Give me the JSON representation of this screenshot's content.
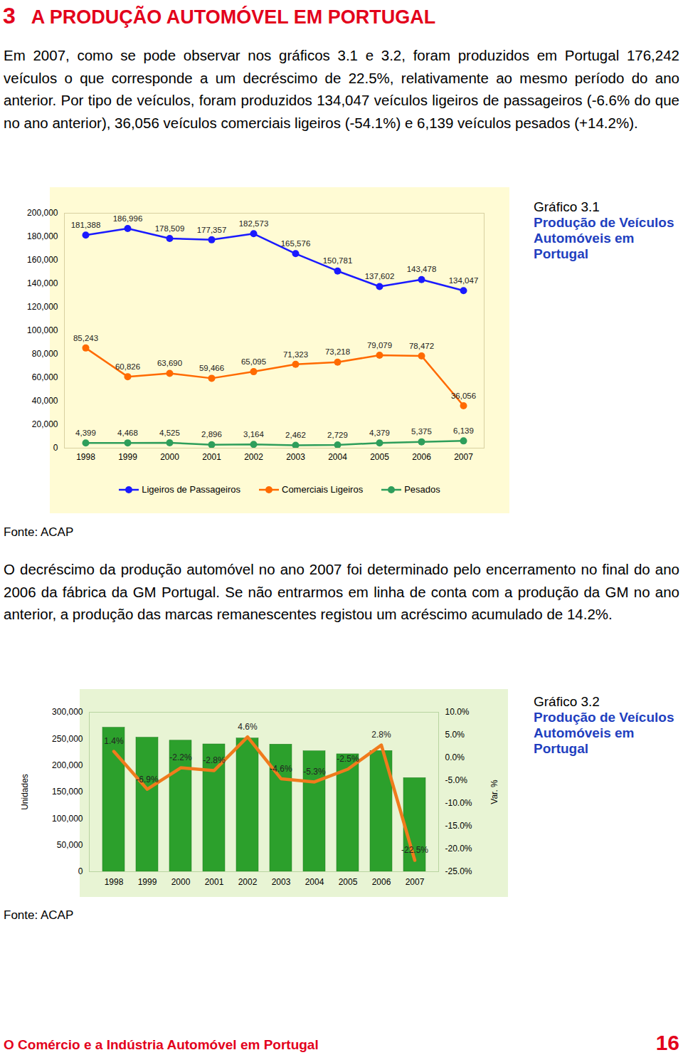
{
  "section_number": "3",
  "section_title": "A PRODUÇÃO AUTOMÓVEL EM PORTUGAL",
  "paragraphs": [
    "Em 2007, como se pode observar nos gráficos 3.1 e 3.2, foram produzidos em Portugal 176,242 veículos o que corresponde a um decréscimo de 22.5%, relativamente ao mesmo período do ano anterior. Por tipo de veículos, foram produzidos 134,047 veículos ligeiros de passageiros (-6.6% do que no ano anterior), 36,056 veículos comerciais ligeiros (-54.1%) e 6,139 veículos pesados (+14.2%).",
    "O decréscimo da produção automóvel no ano 2007 foi determinado pelo encerramento no final do ano 2006 da fábrica da GM Portugal. Se não entrarmos em linha de conta com a produção da GM no ano anterior, a produção das marcas remanescentes registou um acréscimo acumulado de 14.2%."
  ],
  "chart_data": [
    {
      "type": "line",
      "figure": "Gráfico 3.1",
      "title": "Produção de Veículos Automóveis em Portugal",
      "source": "Fonte: ACAP",
      "categories": [
        "1998",
        "1999",
        "2000",
        "2001",
        "2002",
        "2003",
        "2004",
        "2005",
        "2006",
        "2007"
      ],
      "series": [
        {
          "name": "Ligeiros de Passageiros",
          "color": "#1a1aff",
          "marker": "circle",
          "values": [
            181388,
            186996,
            178509,
            177357,
            182573,
            165576,
            150781,
            137602,
            143478,
            134047
          ],
          "value_labels": [
            "181,388",
            "186,996",
            "178,509",
            "177,357",
            "182,573",
            "165,576",
            "150,781",
            "137,602",
            "143,478",
            "134,047"
          ]
        },
        {
          "name": "Comerciais Ligeiros",
          "color": "#ff6a00",
          "marker": "circle",
          "values": [
            85243,
            60826,
            63690,
            59466,
            65095,
            71323,
            73218,
            79079,
            78472,
            36056
          ],
          "value_labels": [
            "85,243",
            "60,826",
            "63,690",
            "59,466",
            "65,095",
            "71,323",
            "73,218",
            "79,079",
            "78,472",
            "36,056"
          ]
        },
        {
          "name": "Pesados",
          "color": "#2e9e5b",
          "marker": "circle",
          "values": [
            4399,
            4468,
            4525,
            2896,
            3164,
            2462,
            2729,
            4379,
            5375,
            6139
          ],
          "value_labels": [
            "4,399",
            "4,468",
            "4,525",
            "2,896",
            "3,164",
            "2,462",
            "2,729",
            "4,379",
            "5,375",
            "6,139"
          ]
        }
      ],
      "ylim": [
        0,
        200000
      ],
      "yticks": [
        0,
        {
          "value": 20000,
          "label": "20,000"
        },
        {
          "value": 40000,
          "label": "40,000"
        },
        {
          "value": 60000,
          "label": "60,000"
        },
        {
          "value": 80000,
          "label": "80,000"
        },
        {
          "value": 100000,
          "label": "100,000"
        },
        {
          "value": 120000,
          "label": "120,000"
        },
        {
          "value": 140000,
          "label": "140,000"
        },
        {
          "value": 160000,
          "label": "160,000"
        },
        {
          "value": 180000,
          "label": "180,000"
        },
        {
          "value": 200000,
          "label": "200,000"
        }
      ],
      "grid": false,
      "data_labels": true,
      "legend": "bottom"
    },
    {
      "type": "bar",
      "figure": "Gráfico 3.2",
      "title": "Produção de Veículos Automóveis em Portugal",
      "source": "Fonte: ACAP",
      "y_label": "Unidades",
      "y2_label": "Var. %",
      "categories": [
        "1998",
        "1999",
        "2000",
        "2001",
        "2002",
        "2003",
        "2004",
        "2005",
        "2006",
        "2007"
      ],
      "series": [
        {
          "type": "bar",
          "color": "#2ca02c",
          "values": [
            271030,
            252290,
            246724,
            239719,
            250832,
            239361,
            226728,
            221060,
            227325,
            176242
          ]
        },
        {
          "type": "line",
          "axis": "y2",
          "color": "#f07b1c",
          "values": [
            1.4,
            -6.9,
            -2.2,
            -2.8,
            4.6,
            -4.6,
            -5.3,
            -2.5,
            2.8,
            -22.5
          ],
          "value_labels": [
            "1.4%",
            "-6.9%",
            "-2.2%",
            "-2.8%",
            "4.6%",
            "-4.6%",
            "-5.3%",
            "-2.5%",
            "2.8%",
            "-22.5%"
          ],
          "data_labels": true
        }
      ],
      "ylim": [
        0,
        300000
      ],
      "yticks": [
        0,
        {
          "value": 50000,
          "label": "50,000"
        },
        {
          "value": 100000,
          "label": "100,000"
        },
        {
          "value": 150000,
          "label": "150,000"
        },
        {
          "value": 200000,
          "label": "200,000"
        },
        {
          "value": 250000,
          "label": "250,000"
        },
        {
          "value": 300000,
          "label": "300,000"
        }
      ],
      "y2lim": [
        -25,
        10
      ],
      "y2ticks": [
        {
          "value": -25,
          "label": "-25.0%"
        },
        {
          "value": -20,
          "label": "-20.0%"
        },
        {
          "value": -15,
          "label": "-15.0%"
        },
        {
          "value": -10,
          "label": "-10.0%"
        },
        {
          "value": -5,
          "label": "-5.0%"
        },
        {
          "value": 0,
          "label": "0.0%"
        },
        {
          "value": 5,
          "label": "5.0%"
        },
        {
          "value": 10,
          "label": "10.0%"
        }
      ],
      "grid": false
    }
  ],
  "footer": {
    "title": "O Comércio e a Indústria Automóvel em Portugal",
    "page": "16"
  }
}
